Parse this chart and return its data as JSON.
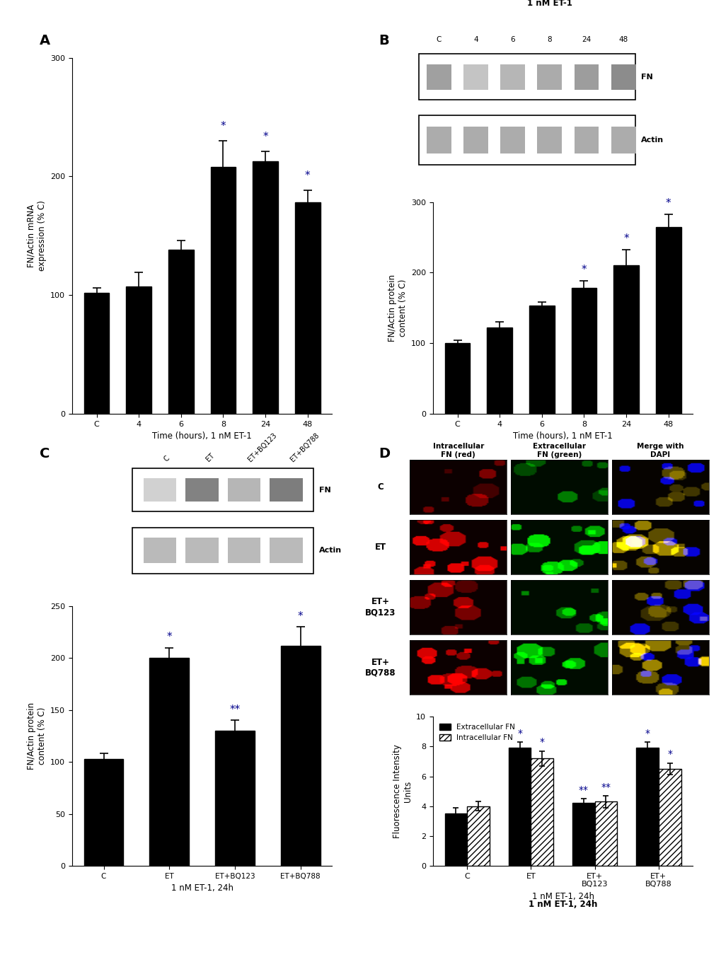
{
  "panel_A": {
    "categories": [
      "C",
      "4",
      "6",
      "8",
      "24",
      "48"
    ],
    "values": [
      102,
      107,
      138,
      208,
      213,
      178
    ],
    "errors": [
      4,
      12,
      8,
      22,
      8,
      10
    ],
    "sig": [
      false,
      false,
      false,
      true,
      true,
      true
    ],
    "ylabel": "FN/Actin mRNA\nexpression (% C)",
    "xlabel": "Time (hours), 1 nM ET-1",
    "ylim": [
      0,
      300
    ],
    "yticks": [
      0,
      100,
      200,
      300
    ]
  },
  "panel_B": {
    "categories": [
      "C",
      "4",
      "6",
      "8",
      "24",
      "48"
    ],
    "values": [
      100,
      122,
      153,
      178,
      210,
      265
    ],
    "errors": [
      4,
      8,
      5,
      10,
      22,
      18
    ],
    "sig": [
      false,
      false,
      false,
      true,
      true,
      true
    ],
    "ylabel": "FN/Actin protein\ncontent (% C)",
    "xlabel": "Time (hours), 1 nM ET-1",
    "ylim": [
      0,
      300
    ],
    "yticks": [
      0,
      100,
      200,
      300
    ],
    "wb_title": "1 nM ET-1",
    "wb_labels": [
      "C",
      "4",
      "6",
      "8",
      "24",
      "48"
    ],
    "fn_intensities": [
      0.68,
      0.42,
      0.52,
      0.6,
      0.7,
      0.82
    ],
    "act_intensities": [
      0.72,
      0.72,
      0.72,
      0.72,
      0.72,
      0.72
    ]
  },
  "panel_C": {
    "categories": [
      "C",
      "ET",
      "ET+BQ123",
      "ET+BQ788"
    ],
    "values": [
      103,
      200,
      130,
      212
    ],
    "errors": [
      5,
      10,
      10,
      18
    ],
    "sig_type": [
      "",
      "*",
      "**",
      "*"
    ],
    "ylabel": "FN/Actin protein\ncontent (% C)",
    "xlabel": "1 nM ET-1, 24h",
    "ylim": [
      0,
      250
    ],
    "yticks": [
      0,
      50,
      100,
      150,
      200,
      250
    ],
    "wb_labels": [
      "C",
      "ET",
      "ET+BQ123",
      "ET+BQ788"
    ],
    "fn_intensities": [
      0.3,
      0.82,
      0.48,
      0.85
    ],
    "act_intensities": [
      0.6,
      0.6,
      0.6,
      0.6
    ]
  },
  "panel_D": {
    "categories": [
      "C",
      "ET",
      "ET+\nBQ123",
      "ET+\nBQ788"
    ],
    "extracellular": [
      3.5,
      7.9,
      4.2,
      7.9
    ],
    "intracellular": [
      4.0,
      7.2,
      4.3,
      6.5
    ],
    "ext_errors": [
      0.4,
      0.4,
      0.3,
      0.4
    ],
    "int_errors": [
      0.3,
      0.5,
      0.4,
      0.4
    ],
    "sig_ext": [
      "",
      "*",
      "**",
      "*"
    ],
    "sig_int": [
      "",
      "*",
      "**",
      "*"
    ],
    "ylabel": "Fluorescence Intensity\nUnits",
    "xlabel": "1 nM ET-1, 24h",
    "ylim": [
      0,
      10
    ],
    "yticks": [
      0,
      2,
      4,
      6,
      8,
      10
    ],
    "col_headers": [
      "Intracellular\nFN (red)",
      "Extracellular\nFN (green)",
      "Merge with\nDAPI"
    ],
    "row_labels": [
      "C",
      "ET",
      "ET+\nBQ123",
      "ET+\nBQ788"
    ],
    "legend_extracellular": "Extracellular FN",
    "legend_intracellular": "Intracellular FN"
  },
  "bar_color": "#000000",
  "sig_color": "#00008B",
  "panel_label_fontsize": 14,
  "axis_label_fontsize": 8.5,
  "tick_fontsize": 8
}
